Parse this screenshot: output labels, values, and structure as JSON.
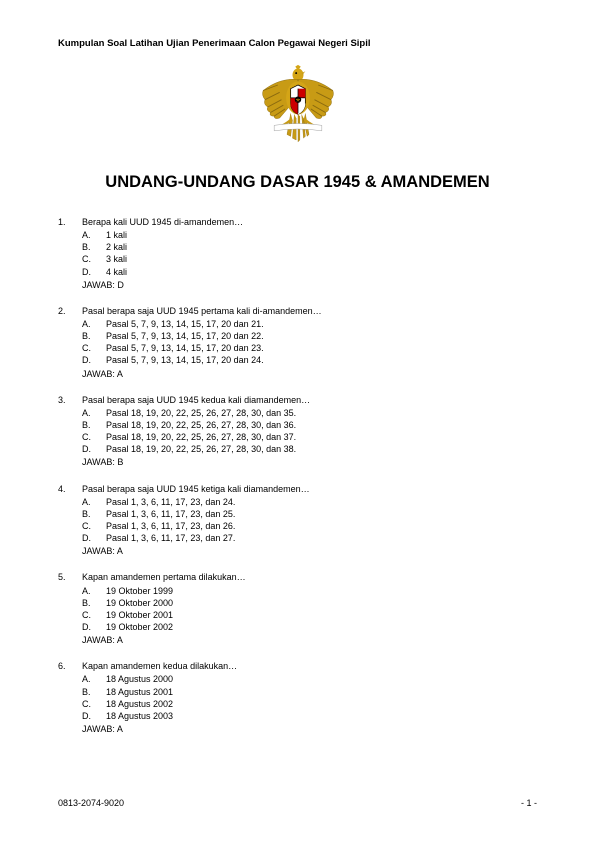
{
  "header": {
    "subtitle": "Kumpulan Soal Latihan Ujian Penerimaan Calon Pegawai Negeri Sipil"
  },
  "emblem": {
    "name": "garuda-pancasila",
    "body_color": "#d4a517",
    "wing_color": "#c89b15",
    "shield_red": "#cc0000",
    "shield_white": "#ffffff",
    "shield_black": "#000000",
    "banner_color": "#ffffff"
  },
  "title": "UNDANG-UNDANG DASAR 1945 & AMANDEMEN",
  "questions": [
    {
      "num": "1.",
      "text": "Berapa kali UUD 1945 di-amandemen…",
      "options": [
        {
          "letter": "A.",
          "text": "1 kali"
        },
        {
          "letter": "B.",
          "text": "2 kali"
        },
        {
          "letter": "C.",
          "text": "3 kali"
        },
        {
          "letter": "D.",
          "text": "4 kali"
        }
      ],
      "answer": "JAWAB: D"
    },
    {
      "num": "2.",
      "text": "Pasal berapa saja UUD 1945 pertama kali di-amandemen…",
      "options": [
        {
          "letter": "A.",
          "text": "Pasal 5, 7, 9, 13, 14, 15, 17, 20 dan 21."
        },
        {
          "letter": "B.",
          "text": "Pasal 5, 7, 9, 13, 14, 15, 17, 20 dan 22."
        },
        {
          "letter": "C.",
          "text": "Pasal 5, 7, 9, 13, 14, 15, 17, 20 dan 23."
        },
        {
          "letter": "D.",
          "text": "Pasal 5, 7, 9, 13, 14, 15, 17, 20 dan 24."
        }
      ],
      "answer": "JAWAB: A"
    },
    {
      "num": "3.",
      "text": "Pasal berapa saja UUD 1945 kedua kali diamandemen…",
      "options": [
        {
          "letter": "A.",
          "text": "Pasal 18, 19, 20, 22, 25, 26, 27, 28, 30, dan 35."
        },
        {
          "letter": "B.",
          "text": "Pasal 18, 19, 20, 22, 25, 26, 27, 28, 30, dan 36."
        },
        {
          "letter": "C.",
          "text": "Pasal 18, 19, 20, 22, 25, 26, 27, 28, 30, dan 37."
        },
        {
          "letter": "D.",
          "text": "Pasal 18, 19, 20, 22, 25, 26, 27, 28, 30, dan 38."
        }
      ],
      "answer": "JAWAB: B"
    },
    {
      "num": "4.",
      "text": "Pasal berapa saja UUD 1945 ketiga kali diamandemen…",
      "options": [
        {
          "letter": "A.",
          "text": "Pasal 1, 3, 6, 11, 17, 23, dan 24."
        },
        {
          "letter": "B.",
          "text": "Pasal 1, 3, 6, 11, 17, 23, dan 25."
        },
        {
          "letter": "C.",
          "text": "Pasal 1, 3, 6, 11, 17, 23, dan 26."
        },
        {
          "letter": "D.",
          "text": "Pasal 1, 3, 6, 11, 17, 23, dan 27."
        }
      ],
      "answer": "JAWAB: A"
    },
    {
      "num": "5.",
      "text": "Kapan amandemen pertama dilakukan…",
      "options": [
        {
          "letter": "A.",
          "text": "19 Oktober 1999"
        },
        {
          "letter": "B.",
          "text": "19 Oktober 2000"
        },
        {
          "letter": "C.",
          "text": "19 Oktober 2001"
        },
        {
          "letter": "D.",
          "text": "19 Oktober 2002"
        }
      ],
      "answer": "JAWAB: A"
    },
    {
      "num": "6.",
      "text": "Kapan amandemen kedua dilakukan…",
      "options": [
        {
          "letter": "A.",
          "text": "18 Agustus 2000"
        },
        {
          "letter": "B.",
          "text": "18 Agustus 2001"
        },
        {
          "letter": "C.",
          "text": "18 Agustus 2002"
        },
        {
          "letter": "D.",
          "text": "18 Agustus 2003"
        }
      ],
      "answer": "JAWAB: A"
    }
  ],
  "footer": {
    "left": "0813-2074-9020",
    "right": "- 1 -"
  }
}
